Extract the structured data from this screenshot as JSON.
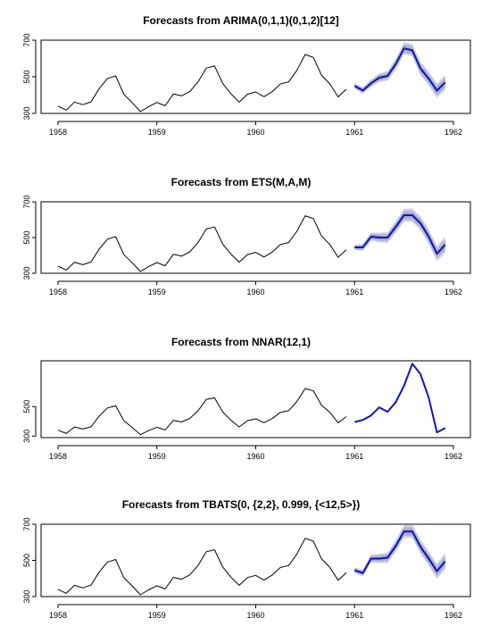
{
  "chart_data": [
    {
      "type": "line",
      "title": "Forecasts from ARIMA(0,1,1)(0,1,2)[12]",
      "x_ticks": [
        "1958",
        "1959",
        "1960",
        "1961",
        "1962"
      ],
      "y_ticks": [
        "300",
        "500",
        "700"
      ],
      "xlim": [
        1958,
        1962
      ],
      "ylim": [
        300,
        700
      ],
      "series": [
        {
          "role": "history",
          "color": "#000000",
          "x_start": 1958.0,
          "x_step": 0.0833333,
          "values": [
            340,
            318,
            362,
            348,
            363,
            435,
            491,
            505,
            404,
            359,
            310,
            337,
            360,
            342,
            406,
            396,
            420,
            472,
            548,
            559,
            463,
            407,
            362,
            405,
            417,
            391,
            419,
            461,
            472,
            535,
            622,
            606,
            508,
            461,
            390,
            432
          ]
        },
        {
          "role": "forecast",
          "color": "#1010c8",
          "x_start": 1961.0,
          "x_step": 0.0833333,
          "values": [
            450,
            425,
            465,
            495,
            505,
            570,
            655,
            645,
            545,
            490,
            425,
            470
          ],
          "interval_color": "#9fa6c0",
          "interval_halfwidth": [
            15,
            18,
            21,
            24,
            27,
            30,
            33,
            35,
            37,
            39,
            40,
            42
          ]
        }
      ]
    },
    {
      "type": "line",
      "title": "Forecasts from ETS(M,A,M)",
      "x_ticks": [
        "1958",
        "1959",
        "1960",
        "1961",
        "1962"
      ],
      "y_ticks": [
        "300",
        "500",
        "700"
      ],
      "xlim": [
        1958,
        1962
      ],
      "ylim": [
        300,
        700
      ],
      "series": [
        {
          "role": "history",
          "color": "#000000",
          "x_start": 1958.0,
          "x_step": 0.0833333,
          "values": [
            340,
            318,
            362,
            348,
            363,
            435,
            491,
            505,
            404,
            359,
            310,
            337,
            360,
            342,
            406,
            396,
            420,
            472,
            548,
            559,
            463,
            407,
            362,
            405,
            417,
            391,
            419,
            461,
            472,
            535,
            622,
            606,
            508,
            461,
            390,
            432
          ]
        },
        {
          "role": "forecast",
          "color": "#1010c8",
          "x_start": 1961.0,
          "x_step": 0.0833333,
          "values": [
            445,
            445,
            505,
            500,
            500,
            560,
            625,
            625,
            580,
            505,
            410,
            460
          ],
          "interval_color": "#9fa6c0",
          "interval_halfwidth": [
            16,
            20,
            24,
            27,
            30,
            33,
            36,
            38,
            40,
            42,
            44,
            46
          ]
        }
      ]
    },
    {
      "type": "line",
      "title": "Forecasts from NNAR(12,1)",
      "x_ticks": [
        "1958",
        "1959",
        "1960",
        "1961",
        "1962"
      ],
      "y_ticks": [
        "300",
        "500"
      ],
      "xlim": [
        1958,
        1962
      ],
      "ylim": [
        290,
        810
      ],
      "series": [
        {
          "role": "history",
          "color": "#000000",
          "x_start": 1958.0,
          "x_step": 0.0833333,
          "values": [
            340,
            318,
            362,
            348,
            363,
            435,
            491,
            505,
            404,
            359,
            310,
            337,
            360,
            342,
            406,
            396,
            420,
            472,
            548,
            559,
            463,
            407,
            362,
            405,
            417,
            391,
            419,
            461,
            472,
            535,
            622,
            606,
            508,
            461,
            390,
            432
          ]
        },
        {
          "role": "forecast",
          "color": "#1010c8",
          "x_start": 1961.0,
          "x_step": 0.0833333,
          "values": [
            395,
            410,
            440,
            495,
            465,
            530,
            640,
            790,
            720,
            560,
            325,
            355
          ]
        }
      ]
    },
    {
      "type": "line",
      "title": "Forecasts from TBATS(0, {2,2}, 0.999, {<12,5>})",
      "x_ticks": [
        "1958",
        "1959",
        "1960",
        "1961",
        "1962"
      ],
      "y_ticks": [
        "300",
        "500",
        "700"
      ],
      "xlim": [
        1958,
        1962
      ],
      "ylim": [
        300,
        700
      ],
      "series": [
        {
          "role": "history",
          "color": "#000000",
          "x_start": 1958.0,
          "x_step": 0.0833333,
          "values": [
            340,
            318,
            362,
            348,
            363,
            435,
            491,
            505,
            404,
            359,
            310,
            337,
            360,
            342,
            406,
            396,
            420,
            472,
            548,
            559,
            463,
            407,
            362,
            405,
            417,
            391,
            419,
            461,
            472,
            535,
            622,
            606,
            508,
            461,
            390,
            432
          ]
        },
        {
          "role": "forecast",
          "color": "#1010c8",
          "x_start": 1961.0,
          "x_step": 0.0833333,
          "values": [
            445,
            430,
            510,
            510,
            515,
            580,
            660,
            660,
            575,
            510,
            440,
            495
          ],
          "interval_color": "#9fa6c0",
          "interval_halfwidth": [
            16,
            20,
            23,
            26,
            29,
            32,
            35,
            37,
            39,
            41,
            43,
            45
          ]
        }
      ]
    }
  ]
}
